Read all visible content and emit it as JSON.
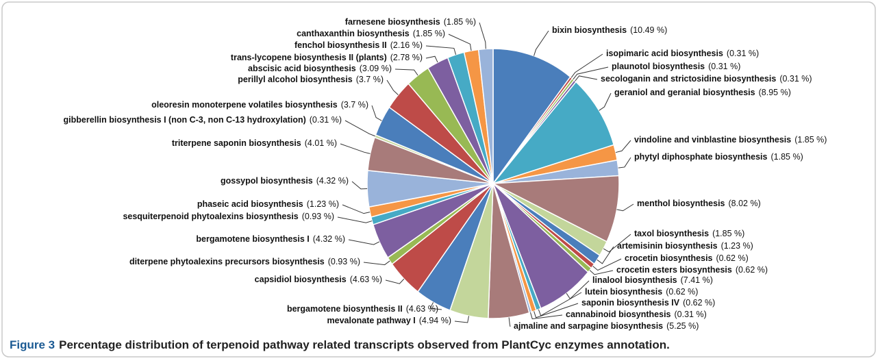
{
  "chart_data": {
    "type": "pie",
    "caption_label": "Figure 3",
    "caption": "Percentage distribution of terpenoid pathway related transcripts observed from PlantCyc enzymes annotation.",
    "categories": [
      "bixin biosynthesis",
      "isopimaric acid biosynthesis",
      "plaunotol biosynthesis",
      "secologanin and strictosidine biosynthesis",
      "geraniol and geranial biosynthesis",
      "vindoline and vinblastine biosynthesis",
      "phytyl diphosphate biosynthesis",
      "menthol biosynthesis",
      "taxol biosynthesis",
      "artemisinin biosynthesis",
      "crocetin biosynthesis",
      "crocetin esters biosynthesis",
      "linalool biosynthesis",
      "lutein biosynthesis",
      "saponin biosynthesis IV",
      "cannabinoid biosynthesis",
      "ajmaline and sarpagine biosynthesis",
      "mevalonate pathway I",
      "bergamotene biosynthesis II",
      "capsidiol biosynthesis",
      "diterpene phytoalexins precursors biosynthesis",
      "bergamotene biosynthesis I",
      "sesquiterpenoid phytoalexins biosynthesis",
      "phaseic acid biosynthesis",
      "gossypol biosynthesis",
      "triterpene saponin biosynthesis",
      "gibberellin biosynthesis I (non C-3, non C-13 hydroxylation)",
      "oleoresin monoterpene volatiles biosynthesis",
      "perillyl alcohol biosynthesis",
      "abscisic acid biosynthesis",
      "trans-lycopene biosynthesis II (plants)",
      "fenchol biosynthesis II",
      "canthaxanthin biosynthesis",
      "farnesene biosynthesis"
    ],
    "values": [
      10.49,
      0.31,
      0.31,
      0.31,
      8.95,
      1.85,
      1.85,
      8.02,
      1.85,
      1.23,
      0.62,
      0.62,
      7.41,
      0.62,
      0.62,
      0.31,
      5.25,
      4.94,
      4.63,
      4.63,
      0.93,
      4.32,
      0.93,
      1.23,
      4.32,
      4.01,
      0.31,
      3.7,
      3.7,
      3.09,
      2.78,
      2.16,
      1.85,
      1.85
    ],
    "value_labels": [
      "(10.49 %)",
      "(0.31 %)",
      "(0.31 %)",
      "(0.31 %)",
      "(8.95 %)",
      "(1.85 %)",
      "(1.85 %)",
      "(8.02 %)",
      "(1.85 %)",
      "(1.23 %)",
      "(0.62 %)",
      "(0.62 %)",
      "(7.41 %)",
      "(0.62 %)",
      "(0.62 %)",
      "(0.31 %)",
      "(5.25 %)",
      "(4.94 %)",
      "(4.63 %)",
      "(4.63 %)",
      "(0.93 %)",
      "(4.32 %)",
      "(0.93 %)",
      "(1.23 %)",
      "(4.32 %)",
      "(4.01 %)",
      "(0.31 %)",
      "(3.7 %)",
      "(3.7 %)",
      "(3.09 %)",
      "(2.78 %)",
      "(2.16 %)",
      "(1.85 %)",
      "(1.85 %)"
    ],
    "colors": [
      "#4a7ebb",
      "#be4b48",
      "#98b954",
      "#7d5fa0",
      "#46aac5",
      "#f59645",
      "#99b3da",
      "#a87b7a",
      "#c3d69b"
    ]
  }
}
